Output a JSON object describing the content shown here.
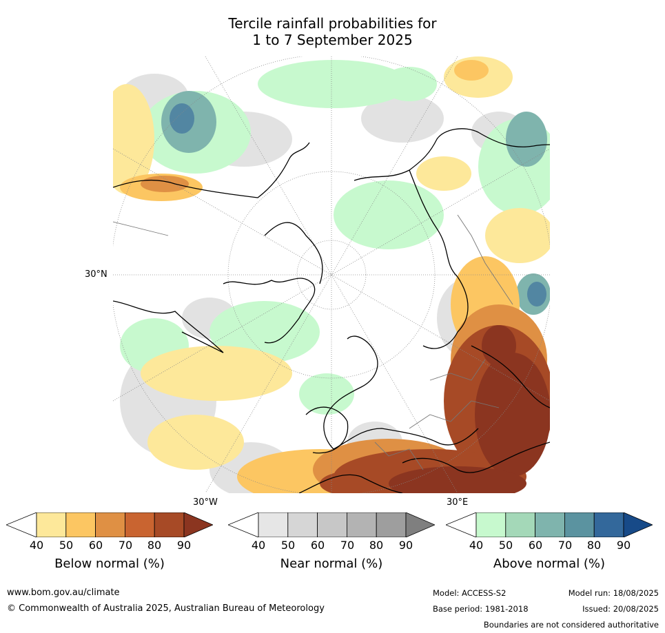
{
  "title": {
    "line1": "Tercile rainfall probabilities for",
    "line2": "1 to 7 September 2025"
  },
  "map": {
    "labels": {
      "lat30": "30°N",
      "lon30w": "30°W",
      "lon30e": "30°E"
    }
  },
  "colorbars": [
    {
      "title": "Below normal (%)",
      "ticks": [
        "40",
        "50",
        "60",
        "70",
        "80",
        "90"
      ],
      "colors": [
        "#ffffff",
        "#fde89a",
        "#fcc662",
        "#df9044",
        "#c96430",
        "#a74a26",
        "#8b3520"
      ]
    },
    {
      "title": "Near normal (%)",
      "ticks": [
        "40",
        "50",
        "60",
        "70",
        "80",
        "90"
      ],
      "colors": [
        "#ffffff",
        "#e6e6e6",
        "#d6d6d6",
        "#c7c7c7",
        "#b3b3b3",
        "#9e9e9e",
        "#7f7f7f"
      ]
    },
    {
      "title": "Above normal (%)",
      "ticks": [
        "40",
        "50",
        "60",
        "70",
        "80",
        "90"
      ],
      "colors": [
        "#ffffff",
        "#c7f9ce",
        "#a4d8b8",
        "#7fb4ad",
        "#5b93a0",
        "#33689b",
        "#174a88"
      ]
    }
  ],
  "footer": {
    "website": "www.bom.gov.au/climate",
    "copyright": "© Commonwealth of Australia 2025, Australian Bureau of Meteorology",
    "model": "Model: ACCESS-S2",
    "model_run": "Model run: 18/08/2025",
    "base_period": "Base period: 1981-2018",
    "issued": "Issued: 20/08/2025",
    "disclaimer": "Boundaries are not considered authoritative"
  }
}
